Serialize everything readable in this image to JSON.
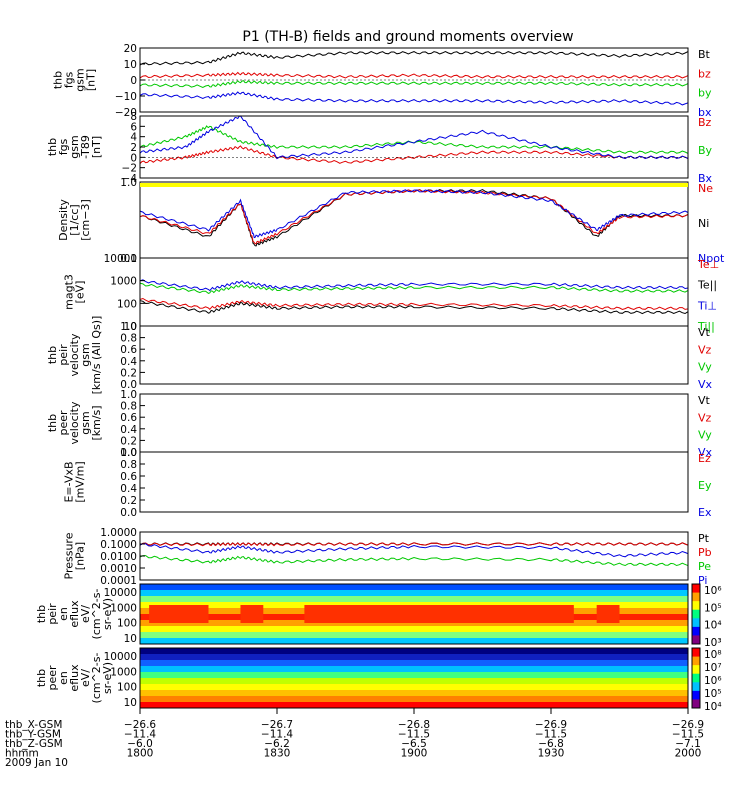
{
  "title": "P1 (TH-B) fields and ground moments overview",
  "colors": {
    "black": "#000000",
    "red": "#e00000",
    "green": "#00c800",
    "blue": "#0000e0",
    "yellow": "#ffff00"
  },
  "chart_data": [
    {
      "id": "fgs",
      "type": "line",
      "ylabel": [
        "thb",
        "fgs",
        "gsm",
        "[nT]"
      ],
      "ylim": [
        -20,
        20
      ],
      "yticks": [
        "20",
        "10",
        "0",
        "−10",
        "−20"
      ],
      "legend": [
        {
          "name": "Bt",
          "color": "black"
        },
        {
          "name": "bz",
          "color": "red"
        },
        {
          "name": "by",
          "color": "green"
        },
        {
          "name": "bx",
          "color": "blue"
        }
      ],
      "x": [
        1800,
        1815,
        1822,
        1830,
        1845,
        1900,
        1915,
        1930,
        1945,
        2000
      ],
      "series": [
        {
          "name": "Bt",
          "color": "black",
          "values": [
            10,
            11,
            17,
            14,
            17,
            17,
            17,
            17,
            15,
            17
          ]
        },
        {
          "name": "bz",
          "color": "red",
          "values": [
            2,
            3,
            4,
            3,
            2,
            3,
            2,
            2,
            2,
            2
          ]
        },
        {
          "name": "by",
          "color": "green",
          "values": [
            -3,
            -4,
            -1,
            -2,
            -2,
            -2,
            -2,
            -2,
            -3,
            -3
          ]
        },
        {
          "name": "bx",
          "color": "blue",
          "values": [
            -9,
            -11,
            -8,
            -12,
            -13,
            -13,
            -13,
            -14,
            -13,
            -15
          ]
        }
      ]
    },
    {
      "id": "fgs89",
      "type": "line",
      "ylabel": [
        "thb",
        "fgs",
        "gsm",
        "-T89",
        "[nT]"
      ],
      "ylim": [
        -4,
        8
      ],
      "yticks": [
        "8",
        "6",
        "4",
        "2",
        "0",
        "−2",
        "−4"
      ],
      "legend": [
        {
          "name": "Bz",
          "color": "red"
        },
        {
          "name": "By",
          "color": "green"
        },
        {
          "name": "Bx",
          "color": "blue"
        }
      ],
      "x": [
        1800,
        1810,
        1815,
        1822,
        1830,
        1845,
        1900,
        1915,
        1930,
        1945,
        2000
      ],
      "series": [
        {
          "name": "Bz",
          "color": "red",
          "values": [
            -1,
            0,
            1,
            2,
            0,
            -1,
            0,
            1,
            1,
            0,
            0
          ]
        },
        {
          "name": "By",
          "color": "green",
          "values": [
            2,
            4,
            6,
            3,
            2,
            2,
            3,
            2,
            2,
            1,
            1
          ]
        },
        {
          "name": "Bx",
          "color": "blue",
          "values": [
            1,
            2,
            5,
            8,
            0,
            1,
            3,
            5,
            2,
            0,
            0
          ]
        }
      ]
    },
    {
      "id": "density",
      "type": "line",
      "ylabel": [
        "Density",
        "[1/cc]",
        "[cm−3]"
      ],
      "ylim": [
        0.1,
        1.2
      ],
      "yticks": [
        "1.0",
        "0.1"
      ],
      "scale": "log",
      "legend": [
        {
          "name": "Ne",
          "color": "red"
        },
        {
          "name": "Ni",
          "color": "black"
        },
        {
          "name": "Npot",
          "color": "blue"
        }
      ],
      "x": [
        1800,
        1815,
        1822,
        1825,
        1830,
        1845,
        1900,
        1915,
        1930,
        1940,
        1945,
        2000
      ],
      "series": [
        {
          "name": "Ni",
          "color": "black",
          "values": [
            0.4,
            0.2,
            0.6,
            0.15,
            0.2,
            0.8,
            0.9,
            0.9,
            0.7,
            0.2,
            0.4,
            0.4
          ]
        },
        {
          "name": "Ne",
          "color": "red",
          "values": [
            0.4,
            0.22,
            0.6,
            0.16,
            0.22,
            0.8,
            0.9,
            0.85,
            0.7,
            0.22,
            0.38,
            0.4
          ]
        },
        {
          "name": "Npot",
          "color": "blue",
          "values": [
            0.45,
            0.25,
            0.65,
            0.2,
            0.25,
            0.85,
            0.9,
            0.85,
            0.65,
            0.25,
            0.4,
            0.45
          ]
        }
      ]
    },
    {
      "id": "temp",
      "type": "line",
      "ylabel": [
        "magt3",
        "[eV]"
      ],
      "ylim": [
        10,
        10000
      ],
      "yticks": [
        "10000",
        "1000",
        "100",
        "10"
      ],
      "scale": "log",
      "legend": [
        {
          "name": "Te⊥",
          "color": "red"
        },
        {
          "name": "Te||",
          "color": "black"
        },
        {
          "name": "Ti⊥",
          "color": "blue"
        },
        {
          "name": "Ti||",
          "color": "green"
        }
      ],
      "x": [
        1800,
        1815,
        1822,
        1830,
        1845,
        1900,
        1930,
        1945,
        2000
      ],
      "series": [
        {
          "name": "Ti⊥",
          "color": "blue",
          "values": [
            1000,
            400,
            900,
            500,
            600,
            700,
            700,
            500,
            500
          ]
        },
        {
          "name": "Ti||",
          "color": "green",
          "values": [
            700,
            300,
            600,
            400,
            450,
            500,
            500,
            350,
            350
          ]
        },
        {
          "name": "Te⊥",
          "color": "red",
          "values": [
            150,
            60,
            120,
            80,
            90,
            90,
            80,
            60,
            60
          ]
        },
        {
          "name": "Te||",
          "color": "black",
          "values": [
            120,
            40,
            100,
            60,
            70,
            70,
            60,
            40,
            40
          ]
        }
      ]
    },
    {
      "id": "peirv",
      "type": "line",
      "ylabel": [
        "thb",
        "peir",
        "velocity",
        "gsm",
        "[km/s (All Qs)]"
      ],
      "ylim": [
        0,
        1.0
      ],
      "yticks": [
        "1.0",
        "0.8",
        "0.6",
        "0.4",
        "0.2",
        "0.0"
      ],
      "legend": [
        {
          "name": "Vt",
          "color": "black"
        },
        {
          "name": "Vz",
          "color": "red"
        },
        {
          "name": "Vy",
          "color": "green"
        },
        {
          "name": "Vx",
          "color": "blue"
        }
      ],
      "series": []
    },
    {
      "id": "peerv",
      "type": "line",
      "ylabel": [
        "thb",
        "peer",
        "velocity",
        "gsm",
        "[km/s]"
      ],
      "ylim": [
        0,
        1.0
      ],
      "yticks": [
        "1.0",
        "0.8",
        "0.6",
        "0.4",
        "0.2",
        "0.0"
      ],
      "legend": [
        {
          "name": "Vt",
          "color": "black"
        },
        {
          "name": "Vz",
          "color": "red"
        },
        {
          "name": "Vy",
          "color": "green"
        },
        {
          "name": "Vx",
          "color": "blue"
        }
      ],
      "series": []
    },
    {
      "id": "efield",
      "type": "line",
      "ylabel": [
        "E=-VxB",
        "[mV/m]"
      ],
      "ylim": [
        0,
        1.0
      ],
      "yticks": [
        "1.0",
        "0.8",
        "0.6",
        "0.4",
        "0.2",
        "0.0"
      ],
      "legend": [
        {
          "name": "Ez",
          "color": "red"
        },
        {
          "name": "Ey",
          "color": "green"
        },
        {
          "name": "Ex",
          "color": "blue"
        }
      ],
      "series": []
    },
    {
      "id": "pressure",
      "type": "line",
      "ylabel": [
        "Pressure",
        "[nPa]"
      ],
      "ylim": [
        0.0001,
        1.0
      ],
      "yticks": [
        "1.0000",
        "0.1000",
        "0.0100",
        "0.0010",
        "0.0001"
      ],
      "scale": "log",
      "legend": [
        {
          "name": "Pt",
          "color": "black"
        },
        {
          "name": "Pb",
          "color": "red"
        },
        {
          "name": "Pe",
          "color": "green"
        },
        {
          "name": "Pi",
          "color": "blue"
        }
      ],
      "x": [
        1800,
        1815,
        1822,
        1830,
        1845,
        1900,
        1930,
        1945,
        2000
      ],
      "series": [
        {
          "name": "Pt",
          "color": "black",
          "values": [
            0.1,
            0.1,
            0.1,
            0.1,
            0.1,
            0.1,
            0.1,
            0.1,
            0.1
          ]
        },
        {
          "name": "Pb",
          "color": "red",
          "values": [
            0.1,
            0.09,
            0.1,
            0.09,
            0.1,
            0.1,
            0.1,
            0.1,
            0.1
          ]
        },
        {
          "name": "Pi",
          "color": "blue",
          "values": [
            0.1,
            0.02,
            0.06,
            0.02,
            0.04,
            0.06,
            0.05,
            0.01,
            0.02
          ]
        },
        {
          "name": "Pe",
          "color": "green",
          "values": [
            0.01,
            0.003,
            0.008,
            0.003,
            0.005,
            0.006,
            0.005,
            0.002,
            0.002
          ]
        }
      ]
    },
    {
      "id": "ionspec",
      "type": "heatmap",
      "ylabel": [
        "thb",
        "peir",
        "en",
        "eflux",
        "eV/",
        "(cm^2-s-",
        "sr-eV)"
      ],
      "yticks": [
        "10000",
        "1000",
        "100",
        "10"
      ],
      "colorbar": [
        "10⁶",
        "10⁵",
        "10⁴",
        "10³"
      ]
    },
    {
      "id": "elecspec",
      "type": "heatmap",
      "ylabel": [
        "thb",
        "peer",
        "en",
        "eflux",
        "eV/",
        "(cm^2-s-",
        "sr-eV)"
      ],
      "yticks": [
        "10000",
        "1000",
        "100",
        "10"
      ],
      "colorbar": [
        "10⁸",
        "10⁷",
        "10⁶",
        "10⁵",
        "10⁴"
      ]
    }
  ],
  "xaxis": {
    "rows": [
      {
        "label": "thb_X-GSM",
        "values": [
          "−26.6",
          "−26.7",
          "−26.8",
          "−26.9",
          "−26.9"
        ]
      },
      {
        "label": "thb_Y-GSM",
        "values": [
          "−11.4",
          "−11.4",
          "−11.5",
          "−11.5",
          "−11.5"
        ]
      },
      {
        "label": "thb_Z-GSM",
        "values": [
          "−6.0",
          "−6.2",
          "−6.5",
          "−6.8",
          "−7.1"
        ]
      },
      {
        "label": "hhmm",
        "values": [
          "1800",
          "1830",
          "1900",
          "1930",
          "2000"
        ]
      }
    ],
    "date": "2009 Jan 10"
  }
}
